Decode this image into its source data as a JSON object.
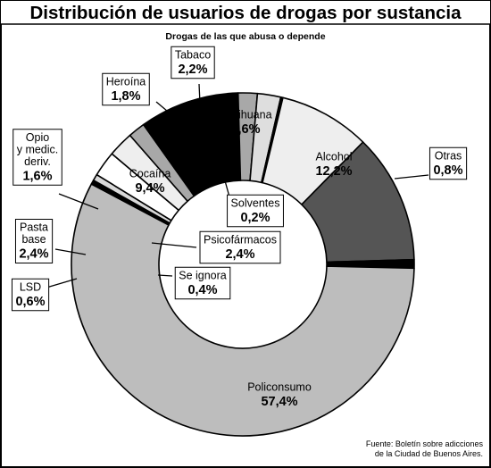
{
  "chart_data": {
    "type": "donut",
    "title": "Distribución de usuarios de drogas por sustancia",
    "subtitle": "Drogas de las que abusa o depende",
    "source": [
      "Fuente: Boletín sobre adicciones",
      "de la Ciudad de Buenos Aires."
    ],
    "segments": [
      {
        "key": "alcohol",
        "name": "Alcohol",
        "value": 12.2,
        "value_label": "12,2%",
        "color": "#555555",
        "text_color": "#ffffff"
      },
      {
        "key": "otras",
        "name": "Otras",
        "value": 0.8,
        "value_label": "0,8%",
        "color": "#000000",
        "text_color": "#000000"
      },
      {
        "key": "policonsumo",
        "name": "Policonsumo",
        "value": 57.4,
        "value_label": "57,4%",
        "color": "#bdbdbd",
        "text_color": "#000000"
      },
      {
        "key": "se_ignora",
        "name": "Se ignora",
        "value": 0.4,
        "value_label": "0,4%",
        "color": "#000000",
        "text_color": "#000000"
      },
      {
        "key": "lsd",
        "name": "LSD",
        "value": 0.6,
        "value_label": "0,6%",
        "color": "#d9d9d9",
        "text_color": "#000000"
      },
      {
        "key": "pasta_base",
        "name": "Pasta base",
        "name_lines": [
          "Pasta",
          "base"
        ],
        "value": 2.4,
        "value_label": "2,4%",
        "color": "#ffffff",
        "text_color": "#000000"
      },
      {
        "key": "psicofarmacos",
        "name": "Psicofármacos",
        "value": 2.4,
        "value_label": "2,4%",
        "color": "#eeeeee",
        "text_color": "#000000"
      },
      {
        "key": "opio",
        "name": "Opio y medic. deriv.",
        "name_lines": [
          "Opio",
          "y medic.",
          "deriv."
        ],
        "value": 1.6,
        "value_label": "1,6%",
        "color": "#a8a8a8",
        "text_color": "#000000"
      },
      {
        "key": "cocaina",
        "name": "Cocaína",
        "value": 9.4,
        "value_label": "9,4%",
        "color": "#000000",
        "text_color": "#ffffff"
      },
      {
        "key": "heroina",
        "name": "Heroína",
        "value": 1.8,
        "value_label": "1,8%",
        "color": "#a8a8a8",
        "text_color": "#000000"
      },
      {
        "key": "tabaco",
        "name": "Tabaco",
        "value": 2.2,
        "value_label": "2,2%",
        "color": "#dedede",
        "text_color": "#000000"
      },
      {
        "key": "solventes",
        "name": "Solventes",
        "value": 0.2,
        "value_label": "0,2%",
        "color": "#000000",
        "text_color": "#000000"
      },
      {
        "key": "marihuana",
        "name": "Marihuana",
        "value": 8.6,
        "value_label": "8,6%",
        "color": "#eeeeee",
        "text_color": "#000000"
      }
    ]
  }
}
